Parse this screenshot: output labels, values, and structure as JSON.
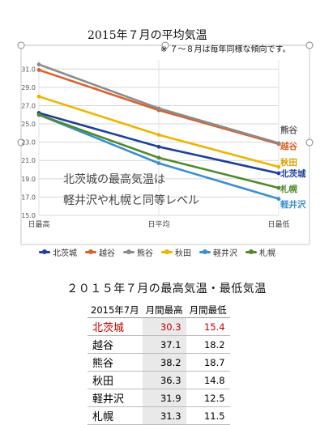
{
  "chart_data": {
    "type": "line",
    "title": "2015年７月の平均気温",
    "note": "※ ７～８月は毎年同様な傾向です。",
    "annotation": [
      "北茨城の最高気温は",
      "軽井沢や札幌と同等レベル"
    ],
    "categories": [
      "日最高",
      "日平均",
      "日最低"
    ],
    "yticks": [
      "15.0",
      "17.0",
      "19.0",
      "21.0",
      "23.0",
      "25.0",
      "27.0",
      "29.0",
      "31.0"
    ],
    "ylim": [
      15.0,
      32.0
    ],
    "grid": true,
    "legend_position": "bottom",
    "series": [
      {
        "name": "北茨城",
        "color": "#1f3f9a",
        "values": [
          26.2,
          22.5,
          19.6
        ],
        "end_label": "北茨城",
        "end_label_color": "#1f3f9a"
      },
      {
        "name": "越谷",
        "color": "#d9622b",
        "values": [
          30.9,
          26.5,
          22.8
        ],
        "end_label": "越谷",
        "end_label_color": "#d9622b"
      },
      {
        "name": "熊谷",
        "color": "#8c8c8c",
        "values": [
          31.5,
          26.7,
          22.9
        ],
        "end_label": "熊谷",
        "end_label_color": "#666666"
      },
      {
        "name": "秋田",
        "color": "#f0b400",
        "values": [
          28.0,
          23.8,
          20.3
        ],
        "end_label": "秋田",
        "end_label_color": "#d4a000"
      },
      {
        "name": "軽井沢",
        "color": "#3a8fd0",
        "values": [
          26.0,
          20.7,
          16.8
        ],
        "end_label": "軽井沢",
        "end_label_color": "#3a8fd0"
      },
      {
        "name": "札幌",
        "color": "#4f8a2a",
        "values": [
          26.0,
          21.3,
          18.0
        ],
        "end_label": "札幌",
        "end_label_color": "#4f8a2a"
      }
    ]
  },
  "table": {
    "title": "２０１５年７月の最高気温・最低気温",
    "headers": [
      "2015年7月",
      "月間最高",
      "月間最低"
    ],
    "rows": [
      {
        "name": "北茨城",
        "max": "30.3",
        "min": "15.4"
      },
      {
        "name": "越谷",
        "max": "37.1",
        "min": "18.2"
      },
      {
        "name": "熊谷",
        "max": "38.2",
        "min": "18.7"
      },
      {
        "name": "秋田",
        "max": "36.3",
        "min": "14.8"
      },
      {
        "name": "軽井沢",
        "max": "31.9",
        "min": "12.5"
      },
      {
        "name": "札幌",
        "max": "31.3",
        "min": "11.5"
      }
    ]
  }
}
